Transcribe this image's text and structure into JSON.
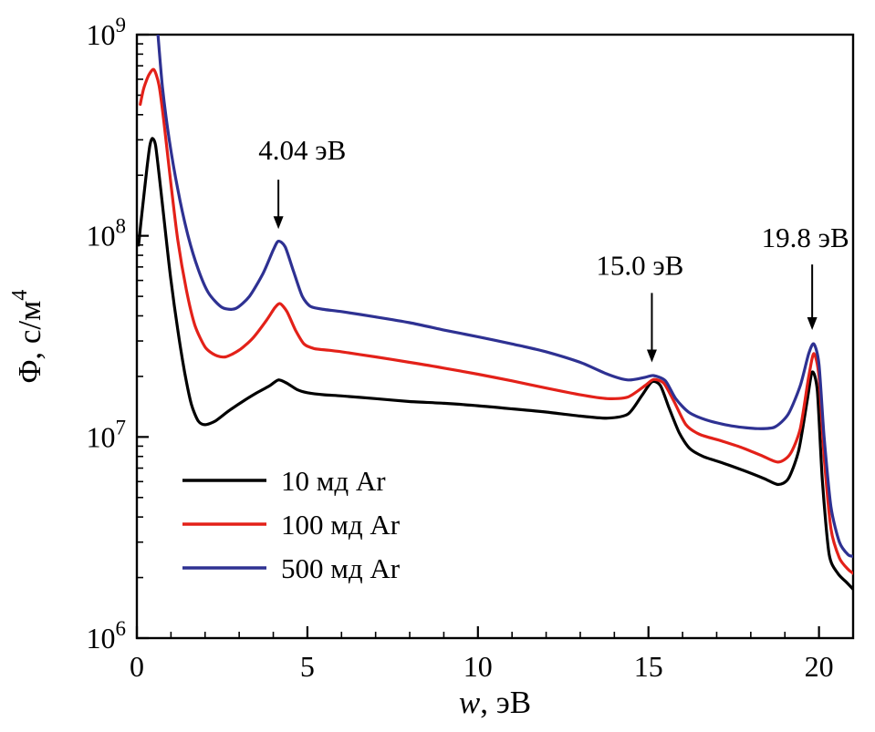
{
  "chart_data": {
    "type": "line",
    "title": "",
    "xlabel": "w, эВ",
    "xlabel_var": "w",
    "xlabel_rest": ", эВ",
    "ylabel": "Φ, с/м⁴",
    "ylabel_main": "Φ, с/м",
    "ylabel_sup": "4",
    "xlim": [
      0,
      21
    ],
    "ylim": [
      1000000.0,
      1000000000.0
    ],
    "y_log": true,
    "grid": false,
    "x_major_ticks": [
      0,
      5,
      10,
      15,
      20
    ],
    "x_tick_labels": [
      "0",
      "5",
      "10",
      "15",
      "20"
    ],
    "x_minor_step": 1,
    "y_major_ticks": [
      1000000.0,
      10000000.0,
      100000000.0,
      1000000000.0
    ],
    "y_tick_base": "10",
    "y_tick_exponents": [
      "6",
      "7",
      "8",
      "9"
    ],
    "legend_position": "lower-left",
    "series": [
      {
        "name": "10 мд Ar",
        "color": "#000000",
        "points": [
          [
            0.05,
            90000000.0
          ],
          [
            0.15,
            130000000.0
          ],
          [
            0.3,
            220000000.0
          ],
          [
            0.38,
            280000000.0
          ],
          [
            0.45,
            305000000.0
          ],
          [
            0.55,
            280000000.0
          ],
          [
            0.7,
            170000000.0
          ],
          [
            0.85,
            100000000.0
          ],
          [
            1.0,
            60000000.0
          ],
          [
            1.2,
            34000000.0
          ],
          [
            1.4,
            21000000.0
          ],
          [
            1.6,
            14500000.0
          ],
          [
            1.8,
            12000000.0
          ],
          [
            2.0,
            11500000.0
          ],
          [
            2.3,
            12000000.0
          ],
          [
            2.7,
            13500000.0
          ],
          [
            3.1,
            15000000.0
          ],
          [
            3.5,
            16500000.0
          ],
          [
            3.9,
            18000000.0
          ],
          [
            4.15,
            19200000.0
          ],
          [
            4.4,
            18500000.0
          ],
          [
            4.7,
            17200000.0
          ],
          [
            5.0,
            16600000.0
          ],
          [
            5.5,
            16200000.0
          ],
          [
            6.0,
            16000000.0
          ],
          [
            7.0,
            15500000.0
          ],
          [
            8.0,
            15000000.0
          ],
          [
            9.0,
            14700000.0
          ],
          [
            10.0,
            14300000.0
          ],
          [
            11.0,
            13800000.0
          ],
          [
            12.0,
            13300000.0
          ],
          [
            13.0,
            12700000.0
          ],
          [
            13.8,
            12400000.0
          ],
          [
            14.4,
            13000000.0
          ],
          [
            14.8,
            16000000.0
          ],
          [
            15.1,
            18800000.0
          ],
          [
            15.35,
            18000000.0
          ],
          [
            15.6,
            14000000.0
          ],
          [
            15.9,
            10500000.0
          ],
          [
            16.2,
            8800000.0
          ],
          [
            16.6,
            8000000.0
          ],
          [
            17.2,
            7400000.0
          ],
          [
            17.8,
            6800000.0
          ],
          [
            18.4,
            6200000.0
          ],
          [
            18.8,
            5800000.0
          ],
          [
            19.1,
            6200000.0
          ],
          [
            19.4,
            8500000.0
          ],
          [
            19.65,
            15000000.0
          ],
          [
            19.8,
            21000000.0
          ],
          [
            19.95,
            17000000.0
          ],
          [
            20.1,
            6000000.0
          ],
          [
            20.3,
            2600000.0
          ],
          [
            20.55,
            2100000.0
          ],
          [
            20.8,
            1900000.0
          ],
          [
            21.0,
            1750000.0
          ]
        ]
      },
      {
        "name": "100 мд Ar",
        "color": "#e32119",
        "points": [
          [
            0.1,
            450000000.0
          ],
          [
            0.2,
            540000000.0
          ],
          [
            0.35,
            630000000.0
          ],
          [
            0.5,
            670000000.0
          ],
          [
            0.65,
            560000000.0
          ],
          [
            0.8,
            360000000.0
          ],
          [
            1.0,
            180000000.0
          ],
          [
            1.2,
            95000000.0
          ],
          [
            1.45,
            54000000.0
          ],
          [
            1.7,
            36000000.0
          ],
          [
            2.0,
            28000000.0
          ],
          [
            2.3,
            25500000.0
          ],
          [
            2.6,
            25000000.0
          ],
          [
            3.0,
            27000000.0
          ],
          [
            3.4,
            31000000.0
          ],
          [
            3.8,
            38000000.0
          ],
          [
            4.05,
            44000000.0
          ],
          [
            4.2,
            46000000.0
          ],
          [
            4.4,
            42000000.0
          ],
          [
            4.65,
            34000000.0
          ],
          [
            4.9,
            29000000.0
          ],
          [
            5.2,
            27500000.0
          ],
          [
            5.6,
            27000000.0
          ],
          [
            6.0,
            26500000.0
          ],
          [
            7.0,
            25000000.0
          ],
          [
            8.0,
            23500000.0
          ],
          [
            9.0,
            22000000.0
          ],
          [
            10.0,
            20500000.0
          ],
          [
            11.0,
            19000000.0
          ],
          [
            12.0,
            17500000.0
          ],
          [
            13.0,
            16200000.0
          ],
          [
            13.8,
            15500000.0
          ],
          [
            14.4,
            15800000.0
          ],
          [
            14.9,
            18000000.0
          ],
          [
            15.15,
            19300000.0
          ],
          [
            15.45,
            18500000.0
          ],
          [
            15.75,
            15000000.0
          ],
          [
            16.1,
            11500000.0
          ],
          [
            16.5,
            10300000.0
          ],
          [
            17.1,
            9600000.0
          ],
          [
            17.7,
            8900000.0
          ],
          [
            18.3,
            8100000.0
          ],
          [
            18.8,
            7500000.0
          ],
          [
            19.15,
            8200000.0
          ],
          [
            19.45,
            11000000.0
          ],
          [
            19.7,
            20000000.0
          ],
          [
            19.85,
            26000000.0
          ],
          [
            20.0,
            20000000.0
          ],
          [
            20.15,
            8000000.0
          ],
          [
            20.35,
            3500000.0
          ],
          [
            20.6,
            2500000.0
          ],
          [
            20.85,
            2200000.0
          ],
          [
            21.0,
            2100000.0
          ]
        ]
      },
      {
        "name": "500 мд Ar",
        "color": "#2e3192",
        "points": [
          [
            0.5,
            1800000000.0
          ],
          [
            0.6,
            1100000000.0
          ],
          [
            0.75,
            550000000.0
          ],
          [
            0.95,
            300000000.0
          ],
          [
            1.2,
            170000000.0
          ],
          [
            1.5,
            100000000.0
          ],
          [
            1.8,
            68000000.0
          ],
          [
            2.1,
            52000000.0
          ],
          [
            2.5,
            44000000.0
          ],
          [
            2.9,
            43500000.0
          ],
          [
            3.3,
            50000000.0
          ],
          [
            3.7,
            65000000.0
          ],
          [
            4.0,
            85000000.0
          ],
          [
            4.15,
            94000000.0
          ],
          [
            4.35,
            88000000.0
          ],
          [
            4.6,
            66000000.0
          ],
          [
            4.85,
            50000000.0
          ],
          [
            5.1,
            44500000.0
          ],
          [
            5.5,
            43000000.0
          ],
          [
            6.0,
            42000000.0
          ],
          [
            7.0,
            39500000.0
          ],
          [
            8.0,
            37000000.0
          ],
          [
            9.0,
            34000000.0
          ],
          [
            10.0,
            31500000.0
          ],
          [
            11.0,
            29000000.0
          ],
          [
            12.0,
            26500000.0
          ],
          [
            13.0,
            23500000.0
          ],
          [
            13.8,
            20500000.0
          ],
          [
            14.4,
            19200000.0
          ],
          [
            14.9,
            19800000.0
          ],
          [
            15.15,
            20200000.0
          ],
          [
            15.5,
            19000000.0
          ],
          [
            15.8,
            15500000.0
          ],
          [
            16.2,
            13200000.0
          ],
          [
            16.8,
            12000000.0
          ],
          [
            17.5,
            11300000.0
          ],
          [
            18.2,
            11000000.0
          ],
          [
            18.7,
            11200000.0
          ],
          [
            19.1,
            13000000.0
          ],
          [
            19.45,
            18000000.0
          ],
          [
            19.7,
            26000000.0
          ],
          [
            19.85,
            29000000.0
          ],
          [
            20.0,
            23000000.0
          ],
          [
            20.15,
            10000000.0
          ],
          [
            20.35,
            4500000.0
          ],
          [
            20.6,
            3000000.0
          ],
          [
            20.85,
            2600000.0
          ],
          [
            21.0,
            2550000.0
          ]
        ]
      }
    ],
    "annotations": [
      {
        "text": "4.04 эВ",
        "text_x": 4.85,
        "text_y": 240000000.0,
        "arrow_x": 4.15,
        "arrow_y_from": 190000000.0,
        "arrow_y_to": 108000000.0
      },
      {
        "text": "15.0 эВ",
        "text_x": 14.75,
        "text_y": 64000000.0,
        "arrow_x": 15.1,
        "arrow_y_from": 52000000.0,
        "arrow_y_to": 23500000.0
      },
      {
        "text": "19.8 эВ",
        "text_x": 19.6,
        "text_y": 88000000.0,
        "arrow_x": 19.8,
        "arrow_y_from": 72000000.0,
        "arrow_y_to": 34000000.0
      }
    ]
  }
}
